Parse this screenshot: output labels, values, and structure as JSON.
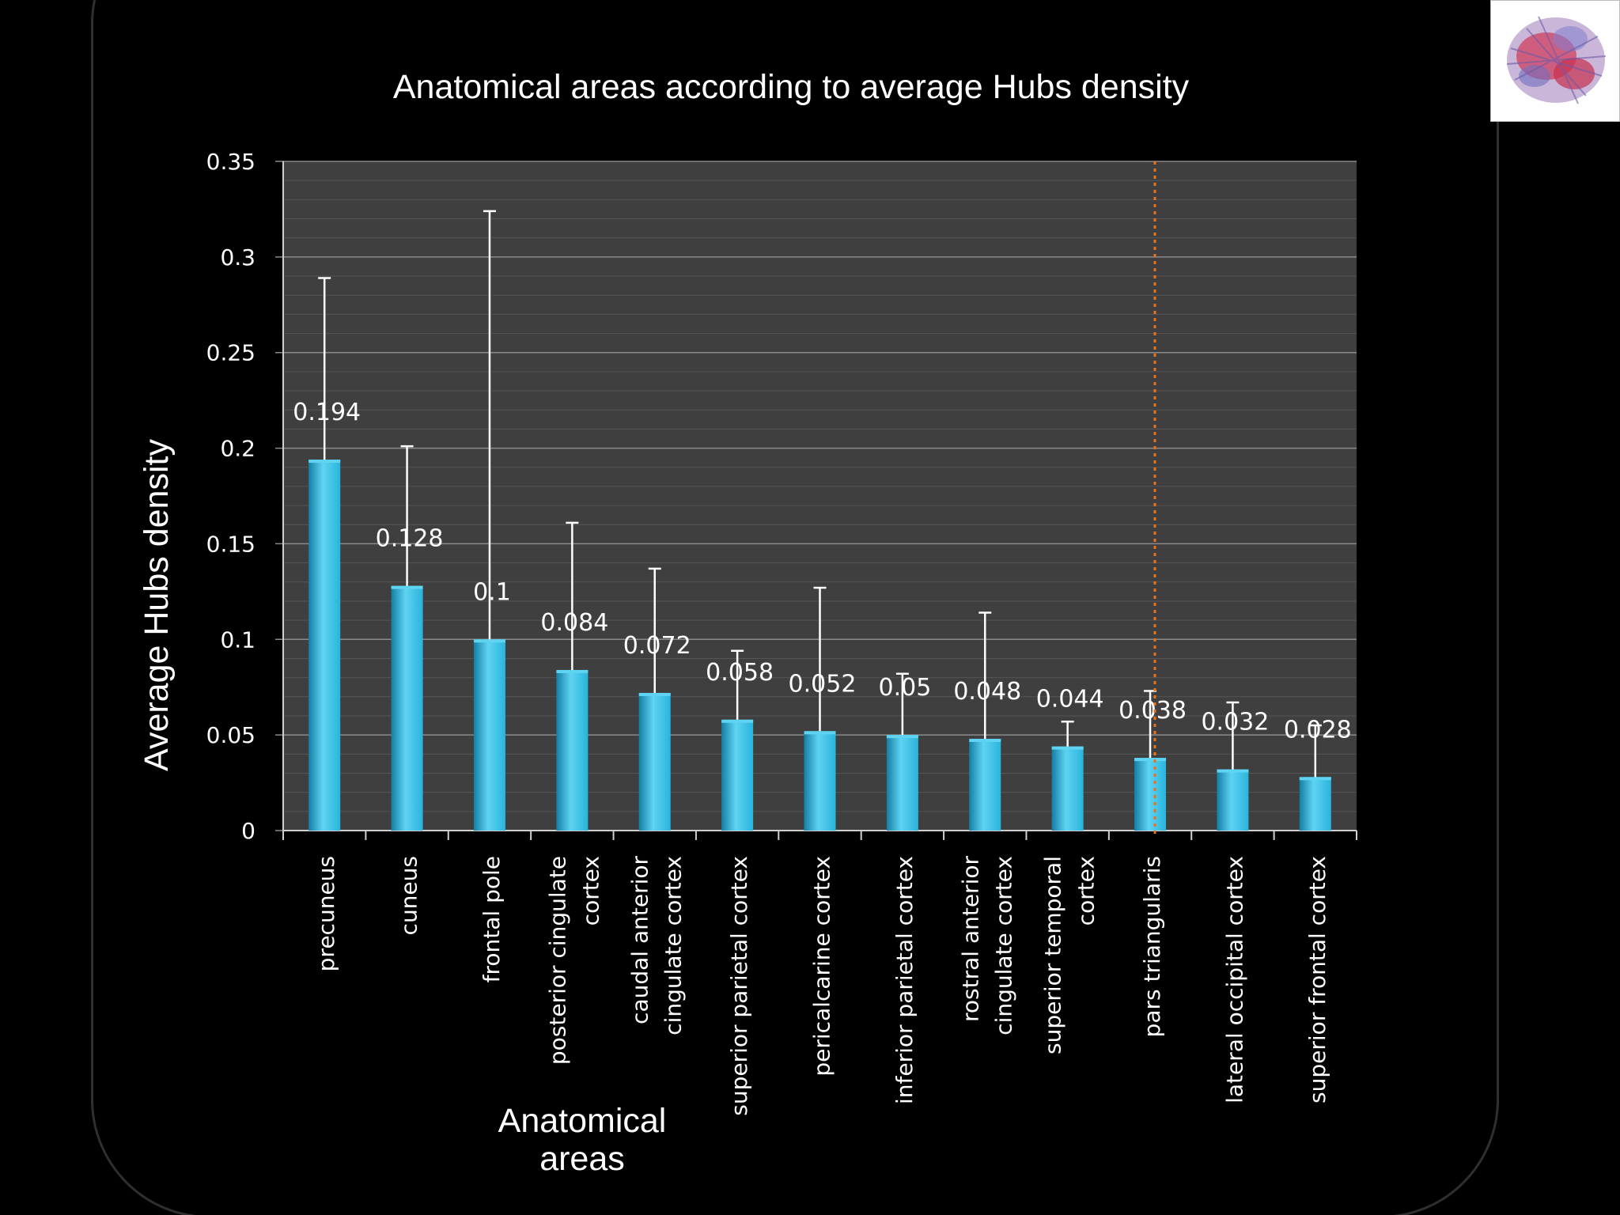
{
  "slide": {
    "title": "Anatomical areas according to average Hubs density",
    "thumbnail": "brain-network-thumbnail"
  },
  "chart_data": {
    "type": "bar",
    "title": "Anatomical areas according to average Hubs density",
    "xlabel_lines": [
      "Anatomical",
      "areas"
    ],
    "ylabel": "Average  Hubs  density",
    "ylim": [
      0,
      0.35
    ],
    "yticks": [
      "0",
      "0.05",
      "0.1",
      "0.15",
      "0.2",
      "0.25",
      "0.3",
      "0.35"
    ],
    "ytick_values": [
      0,
      0.05,
      0.1,
      0.15,
      0.2,
      0.25,
      0.3,
      0.35
    ],
    "grid": true,
    "categories": [
      [
        "precuneus"
      ],
      [
        "cuneus"
      ],
      [
        "frontal pole"
      ],
      [
        "posterior cingulate",
        "cortex"
      ],
      [
        "caudal anterior",
        "cingulate cortex"
      ],
      [
        "superior parietal cortex"
      ],
      [
        "pericalcarine cortex"
      ],
      [
        "inferior parietal cortex"
      ],
      [
        "rostral anterior",
        "cingulate cortex"
      ],
      [
        "superior temporal",
        "cortex"
      ],
      [
        "pars triangularis"
      ],
      [
        "lateral occipital cortex"
      ],
      [
        "superior frontal cortex"
      ]
    ],
    "values": [
      0.194,
      0.128,
      0.1,
      0.084,
      0.072,
      0.058,
      0.052,
      0.05,
      0.048,
      0.044,
      0.038,
      0.032,
      0.028
    ],
    "value_labels": [
      "0.194",
      "0.128",
      "0.1",
      "0.084",
      "0.072",
      "0.058",
      "0.052",
      "0.05",
      "0.048",
      "0.044",
      "0.038",
      "0.032",
      "0.028"
    ],
    "error_upper": [
      0.289,
      0.201,
      0.324,
      0.161,
      0.137,
      0.094,
      0.127,
      0.082,
      0.114,
      0.057,
      0.073,
      0.067,
      0.055
    ],
    "threshold_category_index": 10,
    "colors": {
      "bar": "#29b4dc",
      "bar_light": "#5fd3f2",
      "bar_dark": "#137fa6",
      "plot_bg": "#3f3f3f",
      "grid": "#8a8a8a",
      "minor_grid": "#555555",
      "error_bar": "#ffffff",
      "threshold_line": "#e8731c"
    }
  }
}
